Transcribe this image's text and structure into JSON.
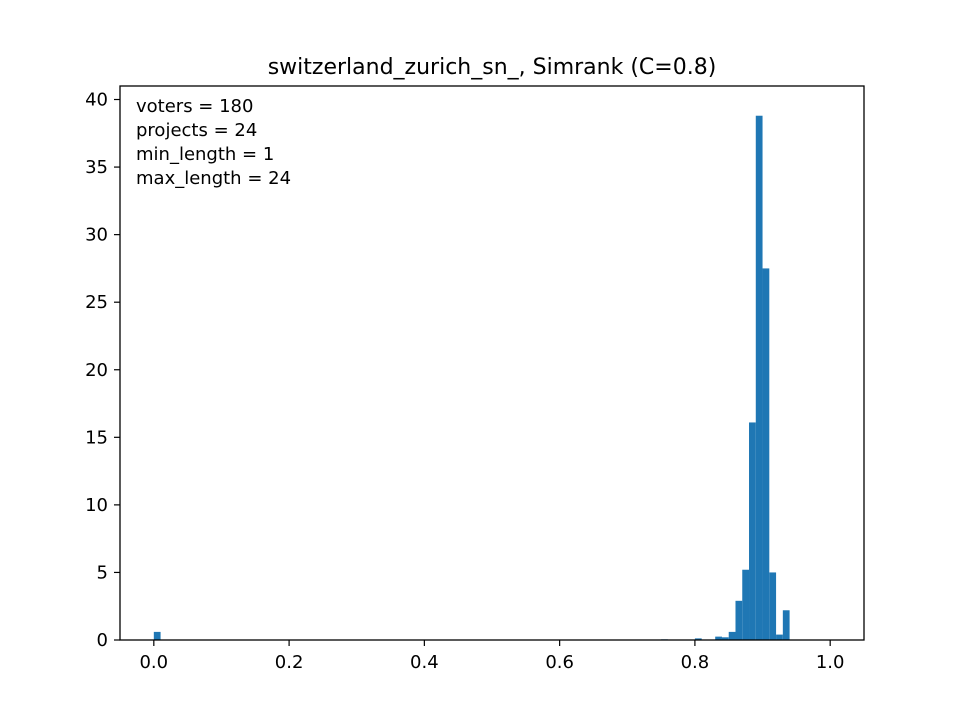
{
  "chart_data": {
    "type": "bar",
    "title": "switzerland_zurich_sn_, Simrank (C=0.8)",
    "xlabel": "",
    "ylabel": "",
    "xlim": [
      -0.05,
      1.05
    ],
    "ylim": [
      0,
      41
    ],
    "grid": false,
    "bar_color": "#1f77b4",
    "bin_width": 0.01,
    "x_ticks": [
      0.0,
      0.2,
      0.4,
      0.6,
      0.8,
      1.0
    ],
    "x_tick_labels": [
      "0.0",
      "0.2",
      "0.4",
      "0.6",
      "0.8",
      "1.0"
    ],
    "y_ticks": [
      0,
      5,
      10,
      15,
      20,
      25,
      30,
      35,
      40
    ],
    "y_tick_labels": [
      "0",
      "5",
      "10",
      "15",
      "20",
      "25",
      "30",
      "35",
      "40"
    ],
    "annotations": [
      "voters = 180",
      "projects = 24",
      "min_length = 1",
      "max_length = 24"
    ],
    "bins": [
      {
        "x": 0.0,
        "value": 0.6
      },
      {
        "x": 0.75,
        "value": 0.05
      },
      {
        "x": 0.8,
        "value": 0.12
      },
      {
        "x": 0.83,
        "value": 0.25
      },
      {
        "x": 0.84,
        "value": 0.2
      },
      {
        "x": 0.85,
        "value": 0.6
      },
      {
        "x": 0.86,
        "value": 2.9
      },
      {
        "x": 0.87,
        "value": 5.2
      },
      {
        "x": 0.88,
        "value": 16.1
      },
      {
        "x": 0.89,
        "value": 38.8
      },
      {
        "x": 0.9,
        "value": 27.5
      },
      {
        "x": 0.91,
        "value": 5.0
      },
      {
        "x": 0.92,
        "value": 0.4
      },
      {
        "x": 0.93,
        "value": 2.2
      }
    ]
  }
}
